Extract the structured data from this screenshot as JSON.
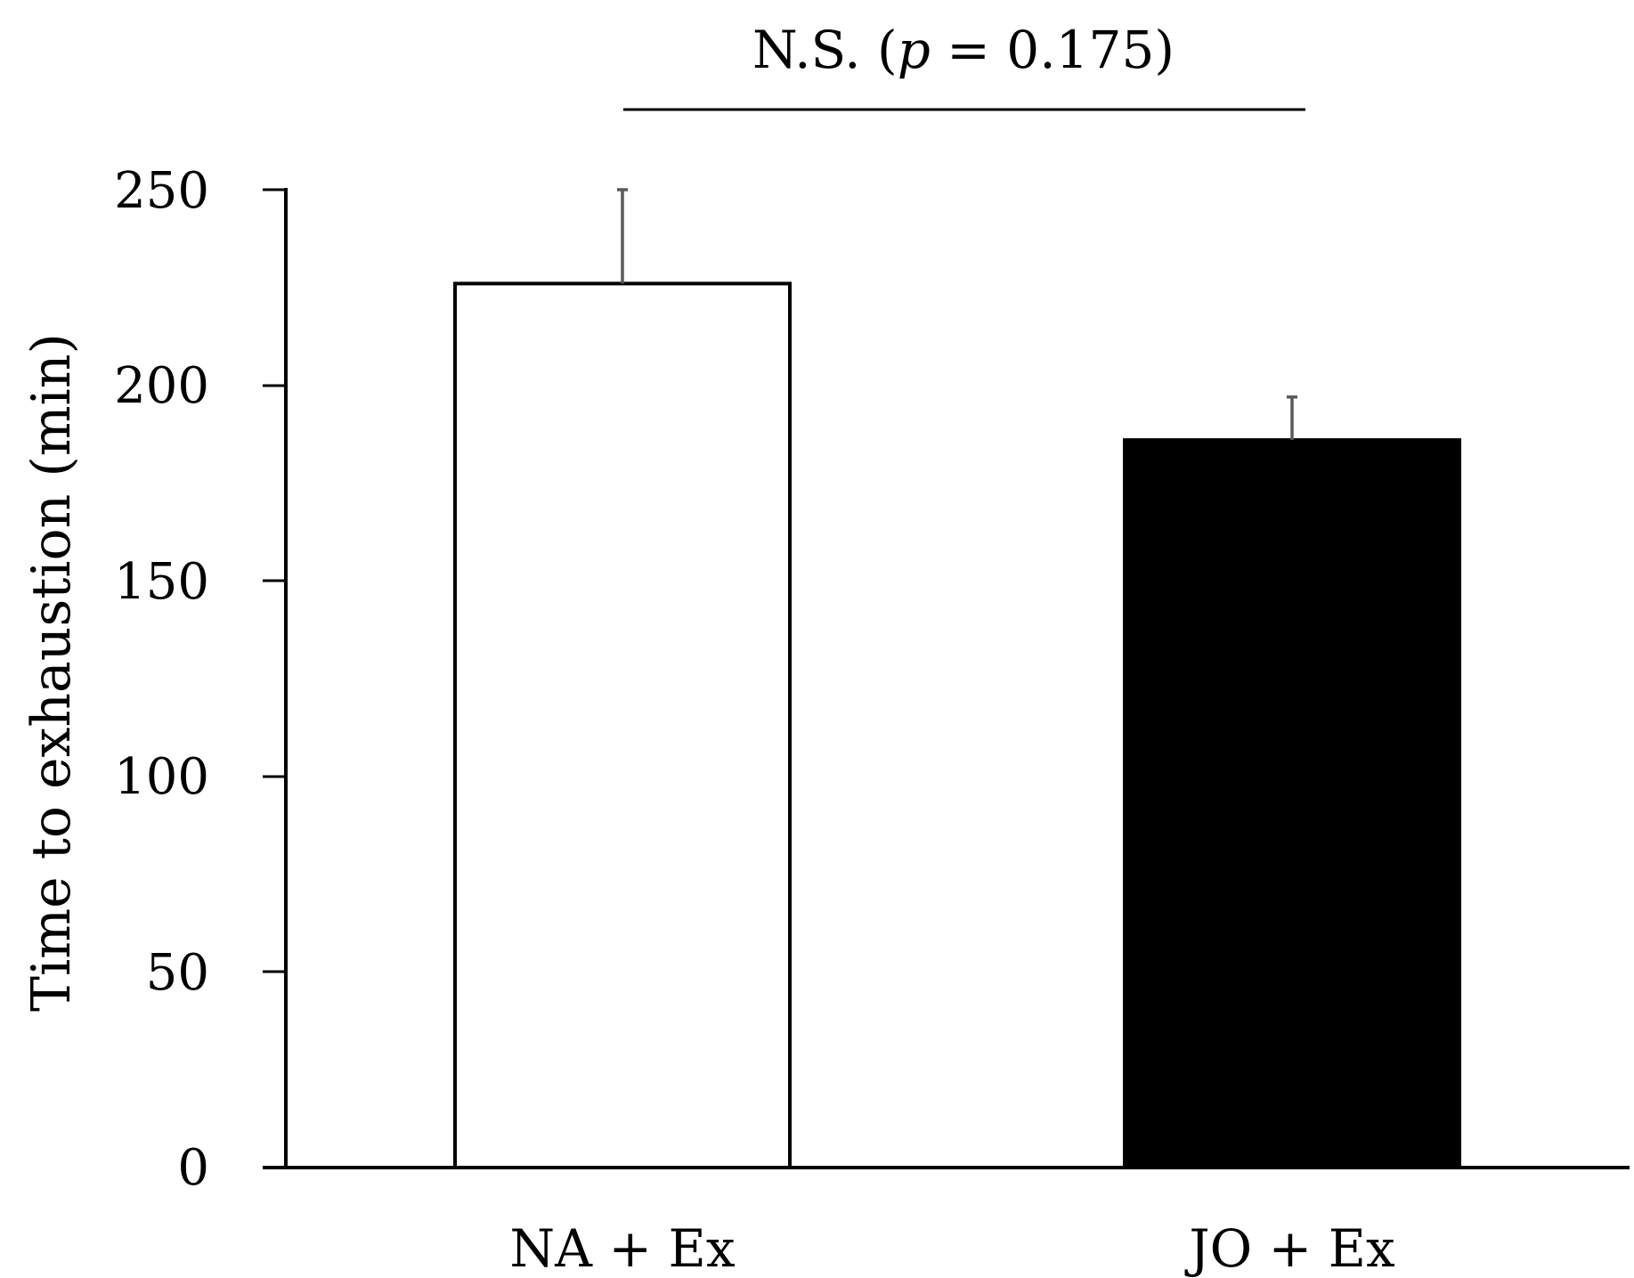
{
  "chart_data": {
    "type": "bar",
    "categories": [
      "NA + Ex",
      "JO + Ex"
    ],
    "values": [
      226,
      186
    ],
    "error_upper": [
      250,
      197
    ],
    "ylabel": "Time to exhaustion (min)",
    "xlabel": "",
    "ylim": [
      0,
      250
    ],
    "yticks": [
      "0",
      "50",
      "100",
      "150",
      "200",
      "250"
    ],
    "bar_colors": [
      "#ffffff",
      "#000000"
    ],
    "bar_edge_color": "#000000",
    "error_bar_color": "#5a5a5a",
    "grid": false,
    "significance": {
      "prefix": "N.S. (",
      "p_symbol": "p",
      "suffix": " = 0.175)"
    }
  }
}
